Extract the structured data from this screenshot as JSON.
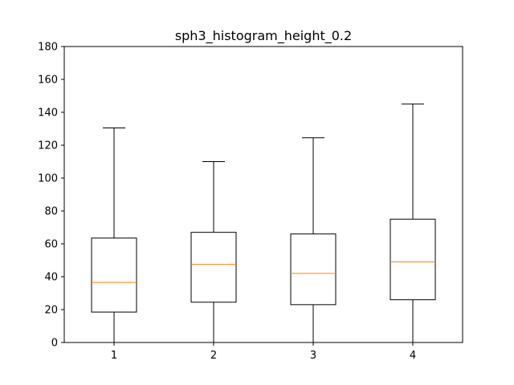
{
  "chart_data": {
    "type": "boxplot",
    "title": "sph3_histogram_height_0.2",
    "xlabel": "",
    "ylabel": "",
    "categories": [
      "1",
      "2",
      "3",
      "4"
    ],
    "ylim": [
      0,
      180
    ],
    "yticks": [
      0,
      20,
      40,
      60,
      80,
      100,
      120,
      140,
      160,
      180
    ],
    "boxes": [
      {
        "label": "1",
        "whislo": 0,
        "q1": 18.5,
        "med": 36.5,
        "q3": 63.5,
        "whishi": 130.5
      },
      {
        "label": "2",
        "whislo": 0,
        "q1": 24.5,
        "med": 47.5,
        "q3": 67,
        "whishi": 110
      },
      {
        "label": "3",
        "whislo": 0,
        "q1": 23,
        "med": 42,
        "q3": 66,
        "whishi": 124.5
      },
      {
        "label": "4",
        "whislo": 0,
        "q1": 26,
        "med": 49,
        "q3": 75,
        "whishi": 145
      }
    ],
    "grid": false,
    "colors": {
      "box": "#000000",
      "median": "#ff7f0e",
      "axes": "#000000"
    }
  }
}
